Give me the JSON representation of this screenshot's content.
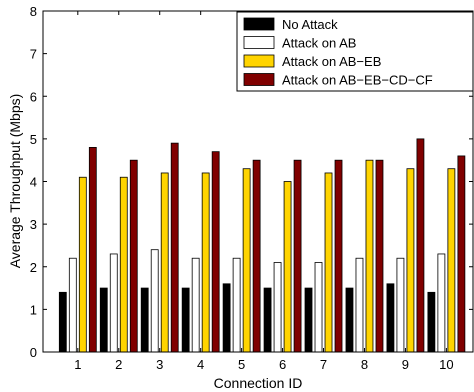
{
  "chart_data": {
    "type": "bar",
    "title": "",
    "xlabel": "Connection ID",
    "ylabel": "Average Throughput (Mbps)",
    "ylim": [
      0,
      8
    ],
    "yticks": [
      0,
      1,
      2,
      3,
      4,
      5,
      6,
      7,
      8
    ],
    "grid": false,
    "legend_position": "top-right",
    "categories": [
      "1",
      "2",
      "3",
      "4",
      "5",
      "6",
      "7",
      "8",
      "9",
      "10"
    ],
    "series": [
      {
        "name": "No Attack",
        "color": "#000000",
        "values": [
          1.4,
          1.5,
          1.5,
          1.5,
          1.6,
          1.5,
          1.5,
          1.5,
          1.6,
          1.4
        ]
      },
      {
        "name": "Attack on AB",
        "color": "#ffffff",
        "values": [
          2.2,
          2.3,
          2.4,
          2.2,
          2.2,
          2.1,
          2.1,
          2.2,
          2.2,
          2.3
        ]
      },
      {
        "name": "Attack on AB−EB",
        "color": "#ffd400",
        "values": [
          4.1,
          4.1,
          4.2,
          4.2,
          4.3,
          4.0,
          4.2,
          4.5,
          4.3,
          4.3
        ]
      },
      {
        "name": "Attack on AB−EB−CD−CF",
        "color": "#800000",
        "values": [
          4.8,
          4.5,
          4.9,
          4.7,
          4.5,
          4.5,
          4.5,
          4.5,
          5.0,
          4.6
        ]
      }
    ]
  }
}
